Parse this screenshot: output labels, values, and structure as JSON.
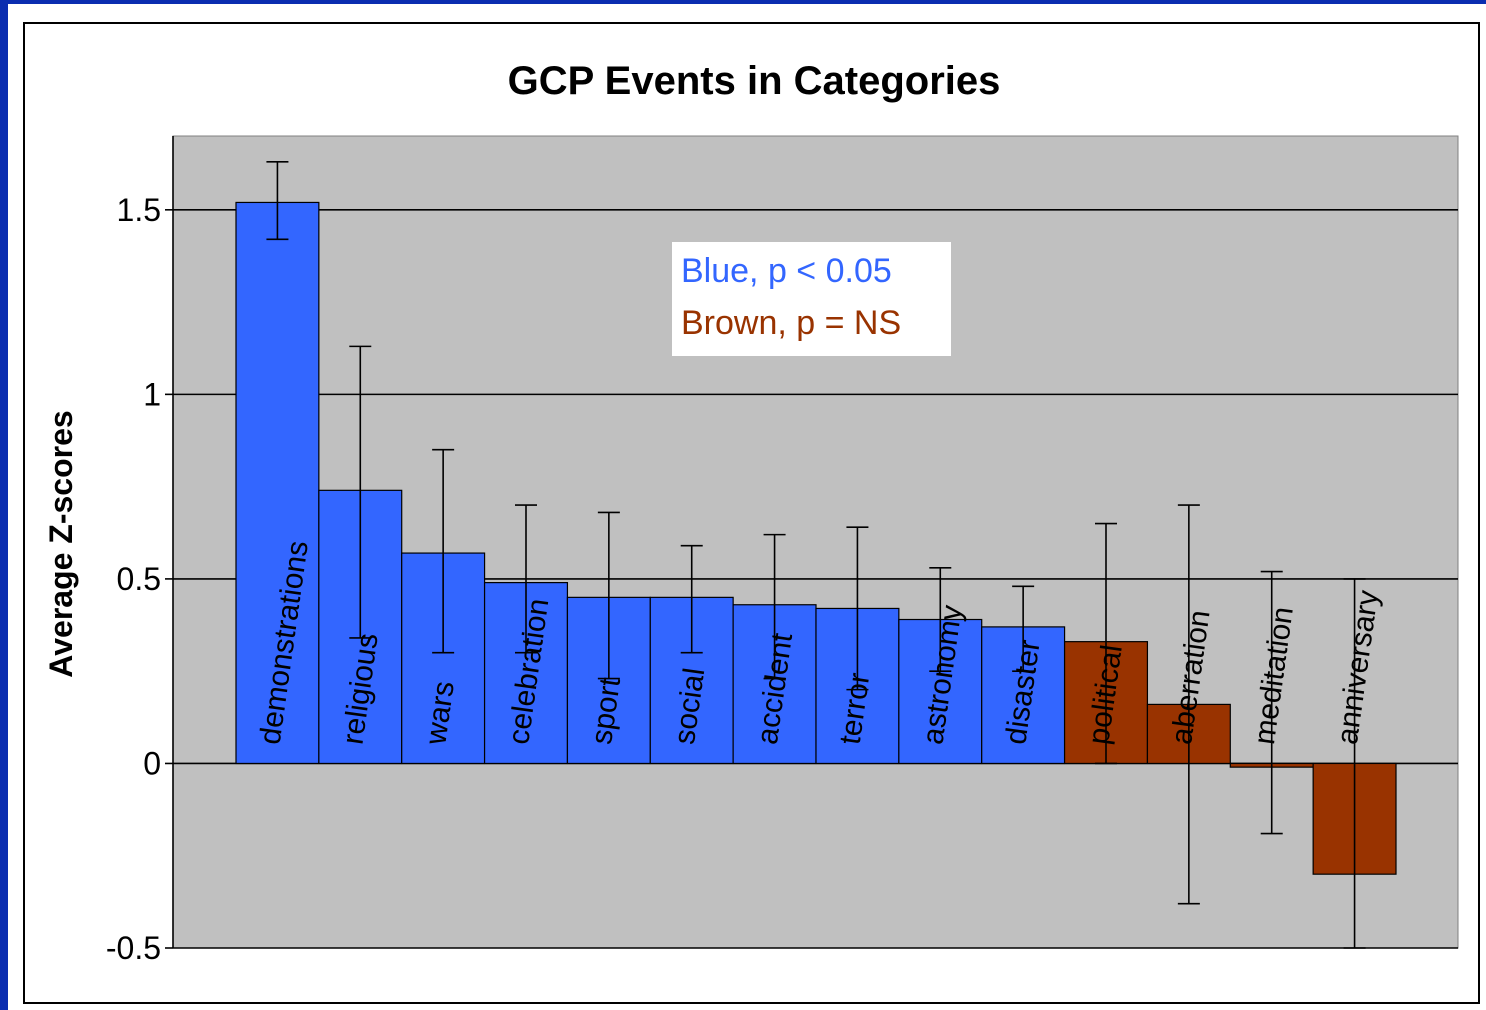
{
  "colors": {
    "significant": "#3366ff",
    "not_significant": "#993300",
    "plot_background": "#c0c0c0",
    "slide_background": "#0a2db0"
  },
  "legend": {
    "line1": "Blue, p < 0.05",
    "line2": "Brown, p = NS",
    "line1_color": "#3366ff",
    "line2_color": "#993300"
  },
  "chart_data": {
    "type": "bar",
    "title": "GCP Events in Categories",
    "xlabel": "",
    "ylabel": "Average Z-scores",
    "ylim": [
      -0.5,
      1.7
    ],
    "yticks": [
      -0.5,
      0,
      0.5,
      1,
      1.5
    ],
    "ytick_labels": [
      "-0.5",
      "0",
      "0.5",
      "1",
      "1.5"
    ],
    "grid": true,
    "categories": [
      "demonstrations",
      "religious",
      "wars",
      "celebration",
      "sport",
      "social",
      "accident",
      "terror",
      "astronomy",
      "disaster",
      "political",
      "aberration",
      "meditation",
      "anniversary"
    ],
    "values": [
      1.52,
      0.74,
      0.57,
      0.49,
      0.45,
      0.45,
      0.43,
      0.42,
      0.39,
      0.37,
      0.33,
      0.16,
      -0.01,
      -0.3
    ],
    "error_upper": [
      1.63,
      1.13,
      0.85,
      0.7,
      0.68,
      0.59,
      0.62,
      0.64,
      0.53,
      0.48,
      0.65,
      0.7,
      0.52,
      0.5
    ],
    "error_lower": [
      1.42,
      0.34,
      0.3,
      0.3,
      0.23,
      0.3,
      0.23,
      0.2,
      0.25,
      0.25,
      0.0,
      -0.38,
      -0.19,
      -0.5
    ],
    "significant": [
      true,
      true,
      true,
      true,
      true,
      true,
      true,
      true,
      true,
      true,
      false,
      false,
      false,
      false
    ]
  }
}
